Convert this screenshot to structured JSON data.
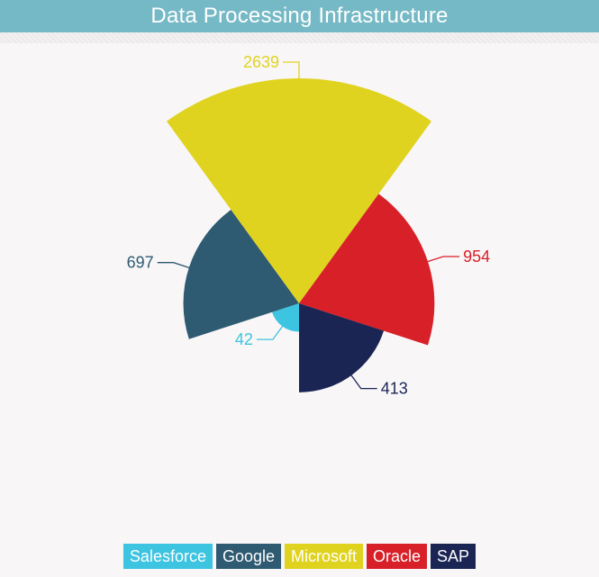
{
  "header": {
    "title": "Data Processing Infrastructure"
  },
  "chart_data": {
    "type": "polar-area",
    "title": "Data Processing Infrastructure",
    "categories": [
      "Salesforce",
      "Google",
      "Microsoft",
      "Oracle",
      "SAP"
    ],
    "values": [
      42,
      697,
      2639,
      954,
      413
    ],
    "colors": [
      "#3cc4e0",
      "#2e5a72",
      "#e0d31f",
      "#d82028",
      "#1b2554"
    ],
    "legend_position": "bottom",
    "grid": false
  },
  "legend": {
    "items": [
      {
        "label": "Salesforce",
        "color": "#3cc4e0"
      },
      {
        "label": "Google",
        "color": "#2e5a72"
      },
      {
        "label": "Microsoft",
        "color": "#e0d31f"
      },
      {
        "label": "Oracle",
        "color": "#d82028"
      },
      {
        "label": "SAP",
        "color": "#1b2554"
      }
    ]
  }
}
